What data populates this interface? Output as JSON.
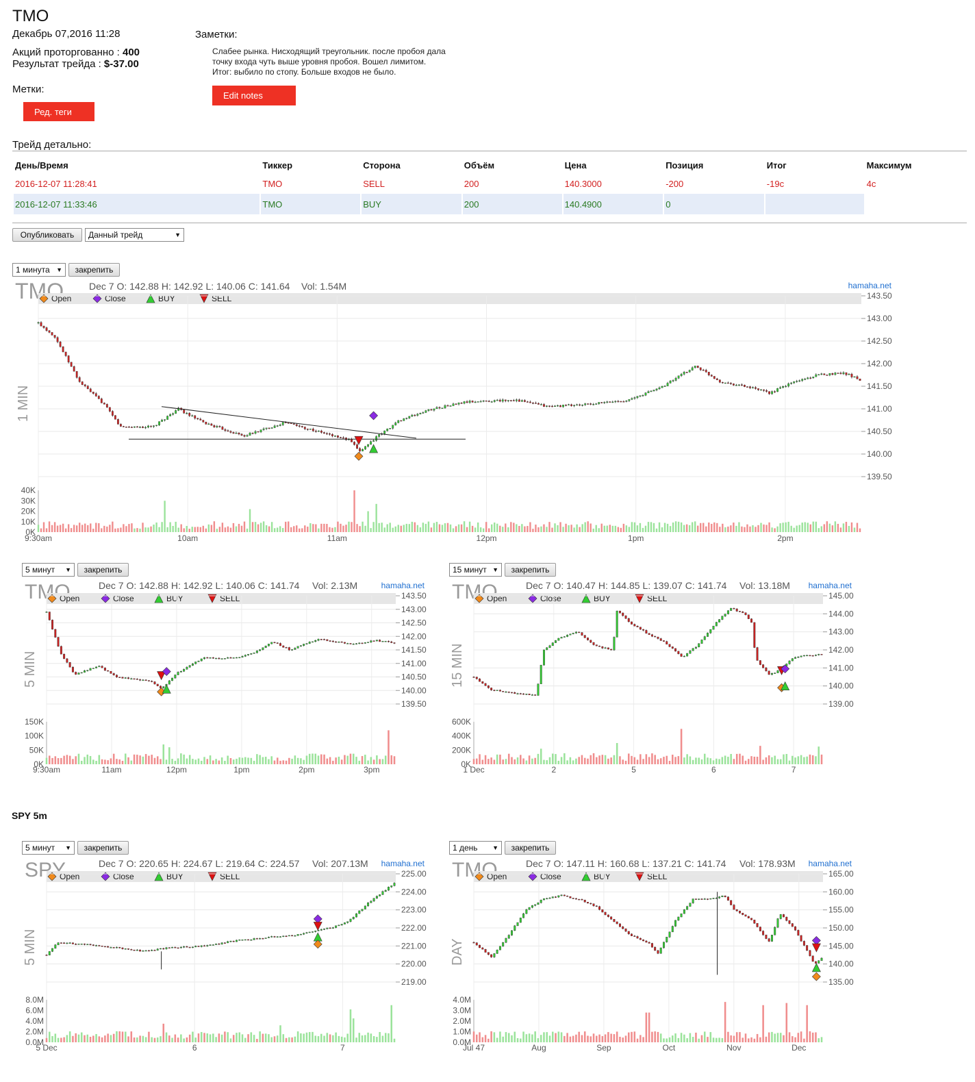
{
  "header": {
    "ticker": "TMO",
    "date": "Декабрь 07,2016 11:28",
    "shares_label": "Акций проторгованно :",
    "shares_value": "400",
    "result_label": "Результат трейда :",
    "result_value": "$-37.00",
    "tags_label": "Метки:",
    "tags_button": "Ред. теги",
    "notes_label": "Заметки:",
    "notes_lines": [
      "Слабее рынка. Нисходящий треугольник. после пробоя дала",
      "точку входа чуть выше уровня пробоя. Вошел лимитом.",
      "Итог: выбило по стопу. Больше входов не было."
    ],
    "notes_button": "Edit notes"
  },
  "details": {
    "title": "Трейд детально:",
    "columns": [
      "День/Время",
      "Тиккер",
      "Сторона",
      "Объём",
      "Цена",
      "Позиция",
      "Итог",
      "Максимум"
    ],
    "rows": [
      [
        "2016-12-07 11:28:41",
        "TMO",
        "SELL",
        "200",
        "140.3000",
        "-200",
        "-19c",
        "4c"
      ],
      [
        "2016-12-07 11:33:46",
        "TMO",
        "BUY",
        "200",
        "140.4900",
        "0",
        "",
        ""
      ]
    ]
  },
  "publish": {
    "button": "Опубликовать",
    "scope": "Данный трейд"
  },
  "pin_label": "закрепить",
  "spy_section_title": "SPY 5m",
  "legend": {
    "open": "Open",
    "close": "Close",
    "buy": "BUY",
    "sell": "SELL"
  },
  "colors": {
    "accent_red": "#ee3124",
    "up": "#33cc33",
    "down": "#cc2222",
    "open_marker": "#f08a1c",
    "close_marker": "#8a2be2"
  },
  "chart_data": [
    {
      "type": "candlestick",
      "interval_select": "1 минута",
      "symbol": "TMO",
      "side_label": "1 MIN",
      "info": "Dec 7 O: 142.88 H: 142.92 L: 140.06 C: 141.64",
      "vol": "Vol: 1.54M",
      "source": "hamaha.net",
      "y_ticks": [
        "143.50",
        "143.00",
        "142.50",
        "142.00",
        "141.50",
        "141.00",
        "140.50",
        "140.00",
        "139.50"
      ],
      "y_range": [
        139.5,
        143.5
      ],
      "vol_ticks": [
        "40K",
        "30K",
        "20K",
        "10K",
        "0K"
      ],
      "vol_max": 40000,
      "x_ticks": [
        "9:30am",
        "10am",
        "11am",
        "12pm",
        "1pm",
        "2pm"
      ],
      "path": [
        [
          0,
          142.9
        ],
        [
          0.02,
          142.6
        ],
        [
          0.05,
          141.6
        ],
        [
          0.08,
          141.1
        ],
        [
          0.1,
          140.6
        ],
        [
          0.14,
          140.6
        ],
        [
          0.17,
          141.0
        ],
        [
          0.2,
          140.7
        ],
        [
          0.25,
          140.4
        ],
        [
          0.3,
          140.7
        ],
        [
          0.35,
          140.45
        ],
        [
          0.38,
          140.3
        ],
        [
          0.39,
          140.05
        ],
        [
          0.41,
          140.35
        ],
        [
          0.44,
          140.75
        ],
        [
          0.48,
          141.0
        ],
        [
          0.52,
          141.15
        ],
        [
          0.58,
          141.2
        ],
        [
          0.62,
          141.05
        ],
        [
          0.67,
          141.1
        ],
        [
          0.72,
          141.2
        ],
        [
          0.76,
          141.5
        ],
        [
          0.8,
          141.95
        ],
        [
          0.83,
          141.6
        ],
        [
          0.86,
          141.5
        ],
        [
          0.89,
          141.35
        ],
        [
          0.92,
          141.6
        ],
        [
          0.95,
          141.75
        ],
        [
          0.98,
          141.8
        ],
        [
          1.0,
          141.65
        ]
      ],
      "vol_spikes": [
        [
          0.155,
          30000
        ],
        [
          0.385,
          40000
        ],
        [
          0.4,
          20000
        ],
        [
          0.41,
          27000
        ],
        [
          0.256,
          22000
        ]
      ],
      "markers": [
        {
          "kind": "sell",
          "x": 0.39,
          "y": 140.3
        },
        {
          "kind": "open",
          "x": 0.39,
          "y": 139.95
        },
        {
          "kind": "close",
          "x": 0.408,
          "y": 140.85
        },
        {
          "kind": "buy",
          "x": 0.408,
          "y": 140.12
        }
      ],
      "lines": [
        [
          [
            0.15,
            141.05
          ],
          [
            0.46,
            140.35
          ]
        ],
        [
          [
            0.11,
            140.33
          ],
          [
            0.52,
            140.33
          ]
        ]
      ]
    },
    {
      "type": "candlestick",
      "interval_select": "5 минут",
      "symbol": "TMO",
      "side_label": "5 MIN",
      "info": "Dec 7 O: 142.88 H: 142.92 L: 140.06 C: 141.74",
      "vol": "Vol: 2.13M",
      "source": "hamaha.net",
      "y_ticks": [
        "143.50",
        "143.00",
        "142.50",
        "142.00",
        "141.50",
        "141.00",
        "140.50",
        "140.00",
        "139.50"
      ],
      "y_range": [
        139.5,
        143.5
      ],
      "vol_ticks": [
        "150K",
        "100K",
        "50K",
        "0K"
      ],
      "vol_max": 150000,
      "x_ticks": [
        "9:30am",
        "11am",
        "12pm",
        "1pm",
        "2pm",
        "3pm"
      ],
      "path": [
        [
          0,
          142.9
        ],
        [
          0.04,
          141.4
        ],
        [
          0.08,
          140.6
        ],
        [
          0.15,
          140.9
        ],
        [
          0.2,
          140.5
        ],
        [
          0.3,
          140.35
        ],
        [
          0.33,
          140.05
        ],
        [
          0.37,
          140.6
        ],
        [
          0.45,
          141.2
        ],
        [
          0.55,
          141.2
        ],
        [
          0.6,
          141.4
        ],
        [
          0.65,
          141.8
        ],
        [
          0.7,
          141.5
        ],
        [
          0.78,
          141.9
        ],
        [
          0.88,
          141.7
        ],
        [
          0.95,
          141.85
        ],
        [
          1.0,
          141.75
        ]
      ],
      "vol_spikes": [
        [
          0.34,
          70000
        ],
        [
          0.98,
          120000
        ],
        [
          0.35,
          60000
        ]
      ],
      "markers": [
        {
          "kind": "sell",
          "x": 0.33,
          "y": 140.55
        },
        {
          "kind": "open",
          "x": 0.33,
          "y": 139.95
        },
        {
          "kind": "close",
          "x": 0.345,
          "y": 140.7
        },
        {
          "kind": "buy",
          "x": 0.345,
          "y": 140.05
        }
      ],
      "lines": []
    },
    {
      "type": "candlestick",
      "interval_select": "15 минут",
      "symbol": "TMO",
      "side_label": "15 MIN",
      "info": "Dec 7 O: 140.47 H: 144.85 L: 139.07 C: 141.74",
      "vol": "Vol: 13.18M",
      "source": "hamaha.net",
      "y_ticks": [
        "145.00",
        "144.00",
        "143.00",
        "142.00",
        "141.00",
        "140.00",
        "139.00"
      ],
      "y_range": [
        139.0,
        145.0
      ],
      "vol_ticks": [
        "600K",
        "400K",
        "200K",
        "0K"
      ],
      "vol_max": 600000,
      "x_ticks": [
        "1 Dec",
        "2",
        "5",
        "6",
        "7"
      ],
      "path": [
        [
          0,
          140.5
        ],
        [
          0.05,
          139.8
        ],
        [
          0.12,
          139.6
        ],
        [
          0.18,
          139.5
        ],
        [
          0.2,
          142.0
        ],
        [
          0.25,
          142.7
        ],
        [
          0.3,
          143.0
        ],
        [
          0.35,
          142.2
        ],
        [
          0.4,
          142.0
        ],
        [
          0.41,
          144.2
        ],
        [
          0.45,
          143.5
        ],
        [
          0.5,
          142.9
        ],
        [
          0.55,
          142.4
        ],
        [
          0.6,
          141.6
        ],
        [
          0.64,
          142.2
        ],
        [
          0.7,
          143.6
        ],
        [
          0.74,
          144.3
        ],
        [
          0.78,
          144.0
        ],
        [
          0.8,
          143.5
        ],
        [
          0.81,
          141.5
        ],
        [
          0.85,
          140.6
        ],
        [
          0.88,
          140.9
        ],
        [
          0.92,
          141.6
        ],
        [
          0.96,
          141.7
        ],
        [
          1.0,
          141.75
        ]
      ],
      "vol_spikes": [
        [
          0.6,
          500000
        ],
        [
          0.41,
          300000
        ],
        [
          0.19,
          220000
        ],
        [
          0.82,
          260000
        ],
        [
          0.99,
          250000
        ]
      ],
      "markers": [
        {
          "kind": "sell",
          "x": 0.885,
          "y": 140.85
        },
        {
          "kind": "open",
          "x": 0.885,
          "y": 139.9
        },
        {
          "kind": "close",
          "x": 0.895,
          "y": 140.95
        },
        {
          "kind": "buy",
          "x": 0.895,
          "y": 140.0
        }
      ],
      "lines": []
    },
    {
      "type": "candlestick",
      "interval_select": "5 минут",
      "symbol": "SPY",
      "side_label": "5 MIN",
      "info": "Dec 7 O: 220.65 H: 224.67 L: 219.64 C: 224.57",
      "vol": "Vol: 207.13M",
      "source": "hamaha.net",
      "y_ticks": [
        "225.00",
        "224.00",
        "223.00",
        "222.00",
        "221.00",
        "220.00",
        "219.00"
      ],
      "y_range": [
        219.0,
        225.0
      ],
      "vol_ticks": [
        "8.0M",
        "6.0M",
        "4.0M",
        "2.0M",
        "0.0M"
      ],
      "vol_max": 8000000,
      "x_ticks": [
        "5 Dec",
        "6",
        "7"
      ],
      "path": [
        [
          0,
          220.5
        ],
        [
          0.03,
          221.2
        ],
        [
          0.1,
          221.1
        ],
        [
          0.2,
          220.9
        ],
        [
          0.28,
          220.7
        ],
        [
          0.35,
          220.9
        ],
        [
          0.45,
          221.0
        ],
        [
          0.55,
          221.3
        ],
        [
          0.65,
          221.5
        ],
        [
          0.72,
          221.6
        ],
        [
          0.78,
          221.9
        ],
        [
          0.82,
          222.0
        ],
        [
          0.87,
          222.4
        ],
        [
          0.92,
          223.3
        ],
        [
          0.96,
          223.9
        ],
        [
          1.0,
          224.5
        ]
      ],
      "vol_spikes": [
        [
          0.34,
          3500000
        ],
        [
          0.67,
          3200000
        ],
        [
          0.87,
          6200000
        ],
        [
          0.99,
          7000000
        ],
        [
          0.88,
          4500000
        ]
      ],
      "markers": [
        {
          "kind": "close",
          "x": 0.78,
          "y": 222.5
        },
        {
          "kind": "sell",
          "x": 0.78,
          "y": 222.1
        },
        {
          "kind": "buy",
          "x": 0.78,
          "y": 221.5
        },
        {
          "kind": "open",
          "x": 0.78,
          "y": 221.1
        }
      ],
      "lines": [
        [
          [
            0.33,
            220.7
          ],
          [
            0.33,
            219.7
          ]
        ]
      ]
    },
    {
      "type": "candlestick",
      "interval_select": "1 день",
      "symbol": "TMO",
      "side_label": "DAY",
      "info": "Dec 7 O: 147.11 H: 160.68 L: 137.21 C: 141.74",
      "vol": "Vol: 178.93M",
      "source": "hamaha.net",
      "y_ticks": [
        "165.00",
        "160.00",
        "155.00",
        "150.00",
        "145.00",
        "140.00",
        "135.00"
      ],
      "y_range": [
        135.0,
        165.0
      ],
      "vol_ticks": [
        "4.0M",
        "3.0M",
        "2.0M",
        "1.0M",
        "0.0M"
      ],
      "vol_max": 4000000,
      "x_ticks": [
        "Jul 47",
        "Aug",
        "Sep",
        "Oct",
        "Nov",
        "Dec"
      ],
      "path": [
        [
          0,
          146
        ],
        [
          0.05,
          142
        ],
        [
          0.1,
          148
        ],
        [
          0.15,
          155
        ],
        [
          0.2,
          158
        ],
        [
          0.25,
          159
        ],
        [
          0.3,
          158
        ],
        [
          0.35,
          156
        ],
        [
          0.4,
          152
        ],
        [
          0.45,
          148
        ],
        [
          0.5,
          146
        ],
        [
          0.53,
          143
        ],
        [
          0.58,
          152
        ],
        [
          0.63,
          158
        ],
        [
          0.68,
          158
        ],
        [
          0.72,
          159
        ],
        [
          0.75,
          155
        ],
        [
          0.8,
          152
        ],
        [
          0.85,
          146
        ],
        [
          0.88,
          154
        ],
        [
          0.92,
          150
        ],
        [
          0.95,
          145
        ],
        [
          0.98,
          140
        ],
        [
          1.0,
          141.7
        ]
      ],
      "vol_spikes": [
        [
          0.5,
          2800000
        ],
        [
          0.72,
          3800000
        ],
        [
          0.83,
          3500000
        ],
        [
          0.9,
          3700000
        ],
        [
          0.96,
          3500000
        ]
      ],
      "markers": [
        {
          "kind": "close",
          "x": 0.985,
          "y": 146.5
        },
        {
          "kind": "sell",
          "x": 0.985,
          "y": 144.5
        },
        {
          "kind": "buy",
          "x": 0.985,
          "y": 139.0
        },
        {
          "kind": "open",
          "x": 0.985,
          "y": 136.5
        }
      ],
      "lines": [
        [
          [
            0.7,
            160
          ],
          [
            0.7,
            137
          ]
        ]
      ]
    }
  ]
}
